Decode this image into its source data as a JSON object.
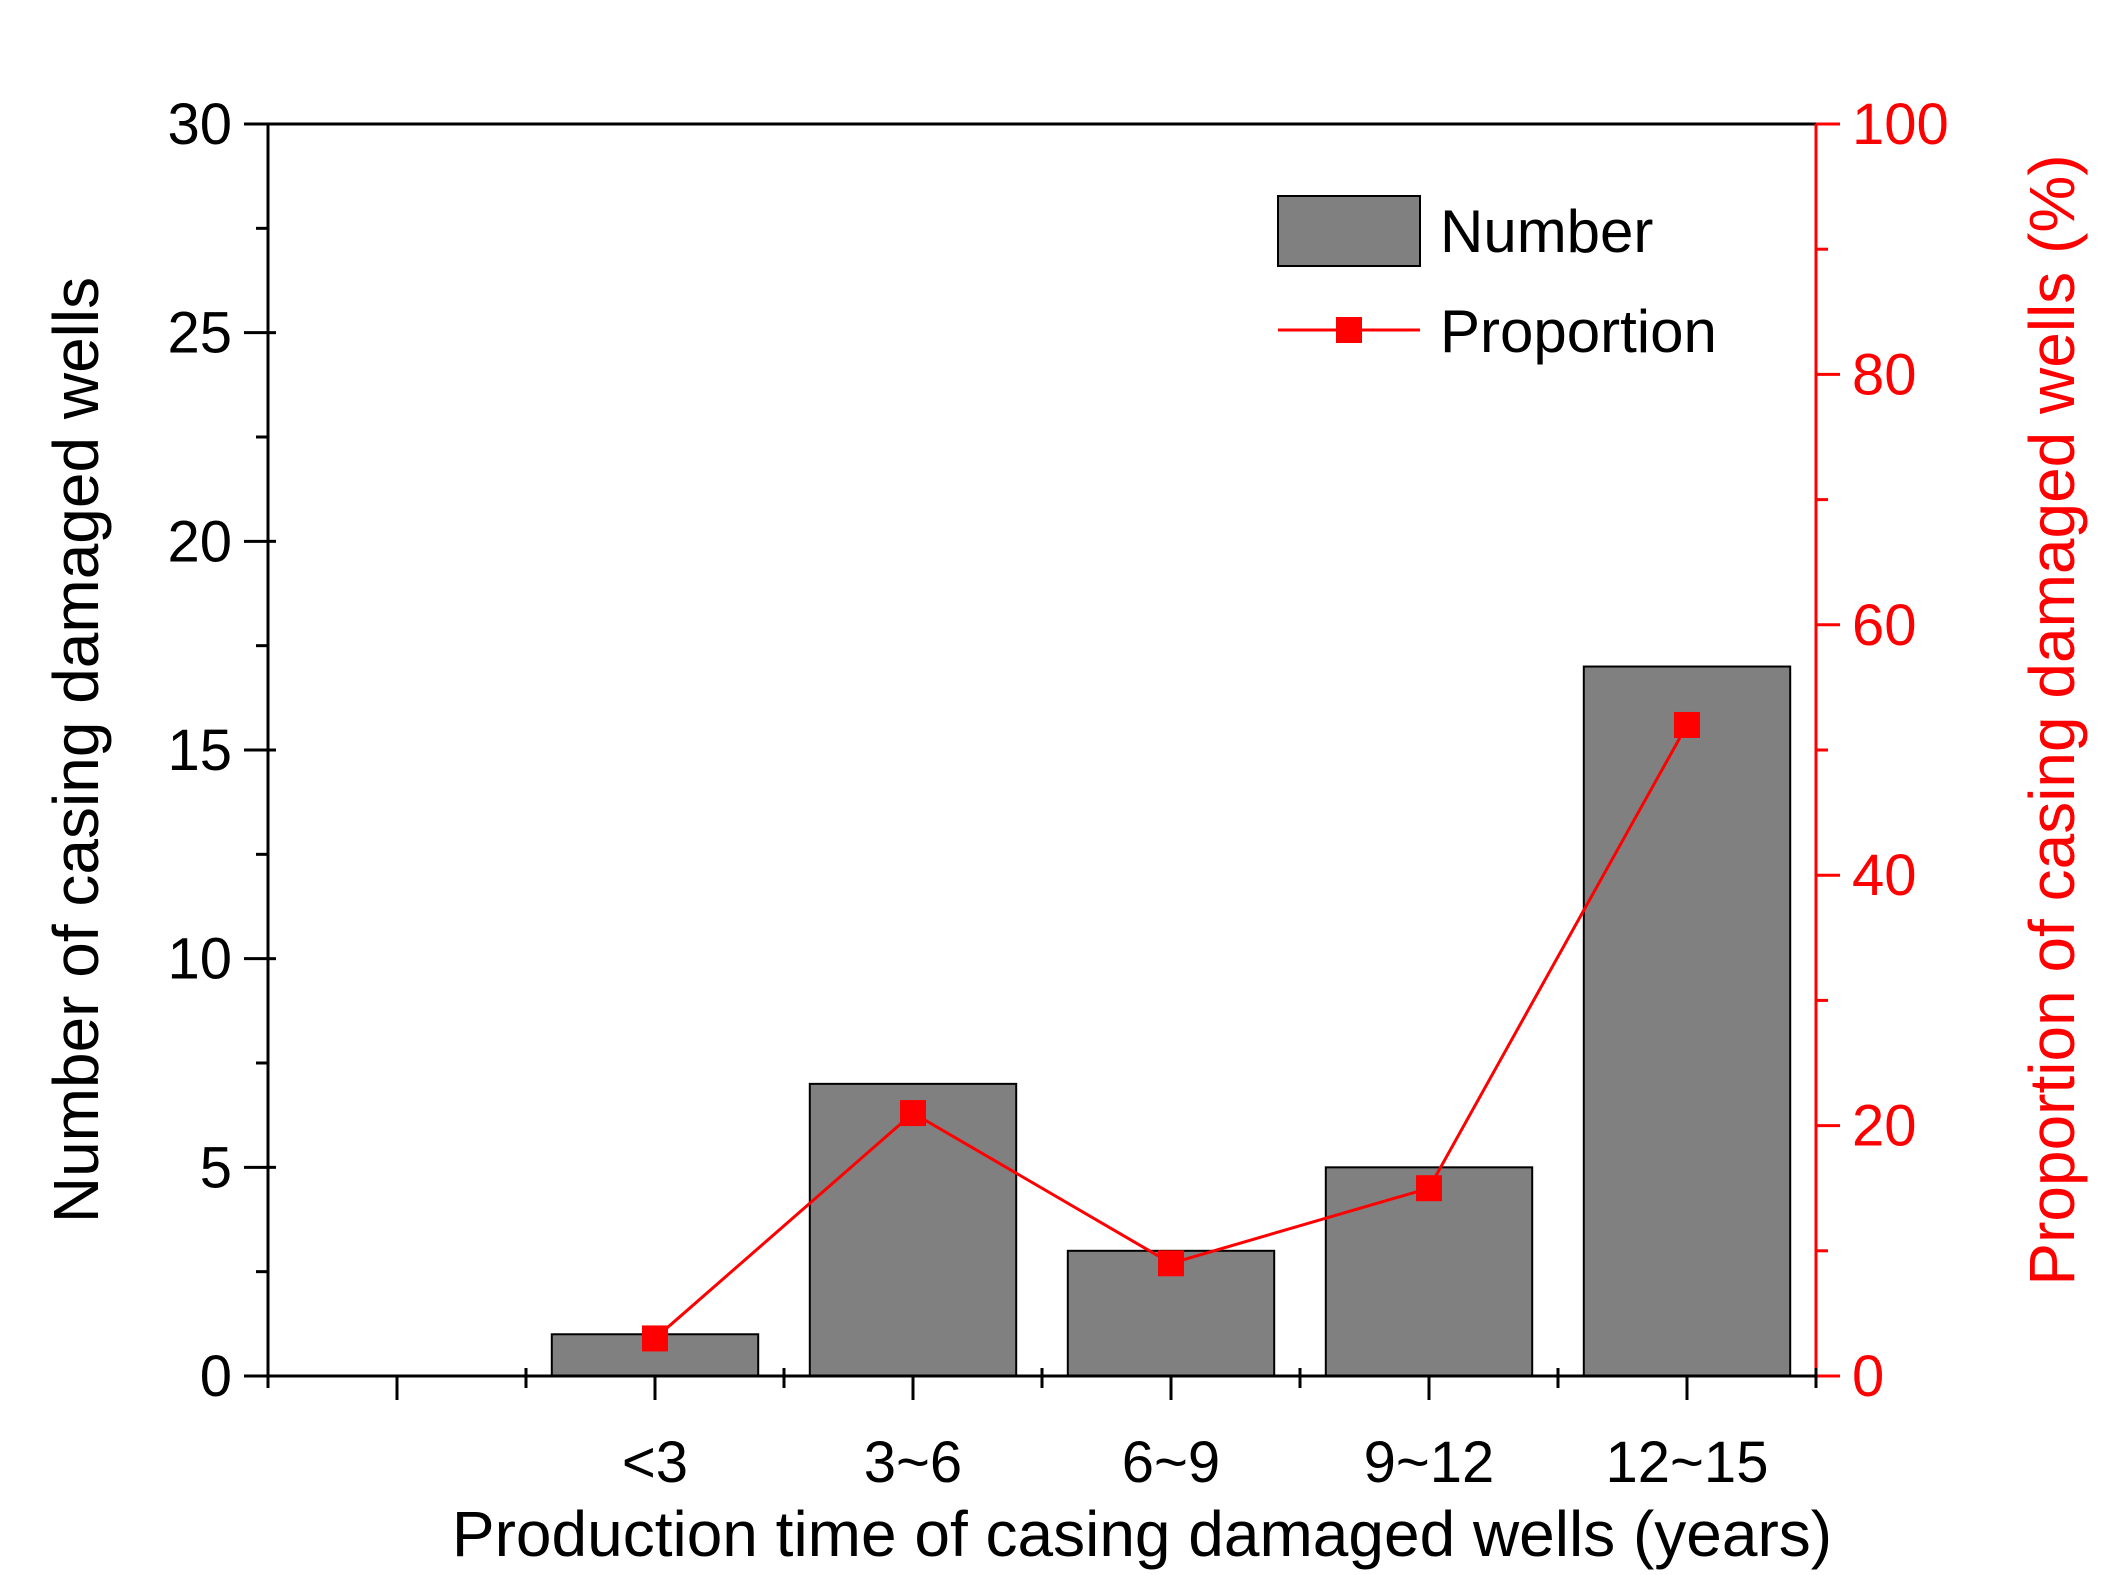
{
  "chart_data": {
    "type": "bar+line",
    "xlabel": "Production time of casing damaged wells (years)",
    "categories": [
      "<3",
      "3~6",
      "6~9",
      "9~12",
      "12~15"
    ],
    "left_axis": {
      "label": "Number of casing damaged wells",
      "ylim": [
        0,
        30
      ],
      "ticks": [
        0,
        5,
        10,
        15,
        20,
        25,
        30
      ]
    },
    "right_axis": {
      "label": "Proportion of casing damaged wells (%)",
      "ylim": [
        0,
        100
      ],
      "ticks": [
        0,
        20,
        40,
        60,
        80,
        100
      ]
    },
    "series": [
      {
        "name": "Number",
        "type": "bar",
        "axis": "left",
        "values": [
          1,
          7,
          3,
          5,
          17
        ]
      },
      {
        "name": "Proportion",
        "type": "line",
        "axis": "right",
        "values": [
          3,
          21,
          9,
          15,
          52
        ]
      }
    ],
    "legend": {
      "position": "top-right",
      "entries": [
        "Number",
        "Proportion"
      ]
    },
    "colors": {
      "bar": "#808080",
      "line": "#ff0000",
      "axis": "#000000",
      "right_axis": "#ff0000"
    }
  }
}
